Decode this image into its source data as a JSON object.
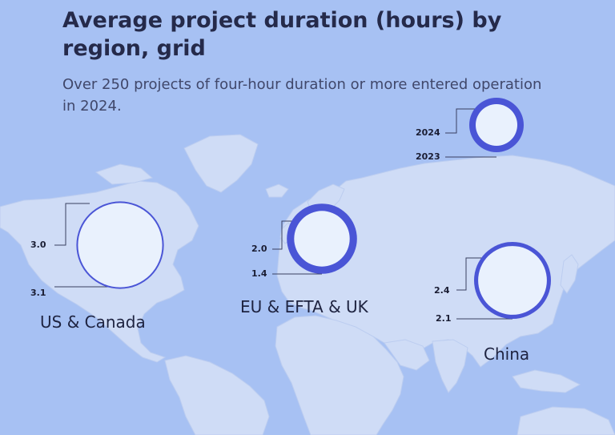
{
  "title": "Average project duration (hours) by region, grid",
  "subtitle": "Over 250 projects of four-hour duration or more entered operation in 2024.",
  "legend": {
    "label_2024": "2024",
    "label_2023": "2023"
  },
  "colors": {
    "background": "#a7c1f3",
    "land": "#cfdcf6",
    "ring_2024": "#4a55d6",
    "ring_2023": "#e9f1fd"
  },
  "regions": [
    {
      "name": "US & Canada",
      "value_2024": "3.0",
      "value_2023": "3.1",
      "v2024": 3.0,
      "v2023": 3.1
    },
    {
      "name": "EU & EFTA & UK",
      "value_2024": "2.0",
      "value_2023": "1.4",
      "v2024": 2.0,
      "v2023": 1.4
    },
    {
      "name": "China",
      "value_2024": "2.4",
      "value_2023": "2.1",
      "v2024": 2.4,
      "v2023": 2.1
    }
  ]
}
